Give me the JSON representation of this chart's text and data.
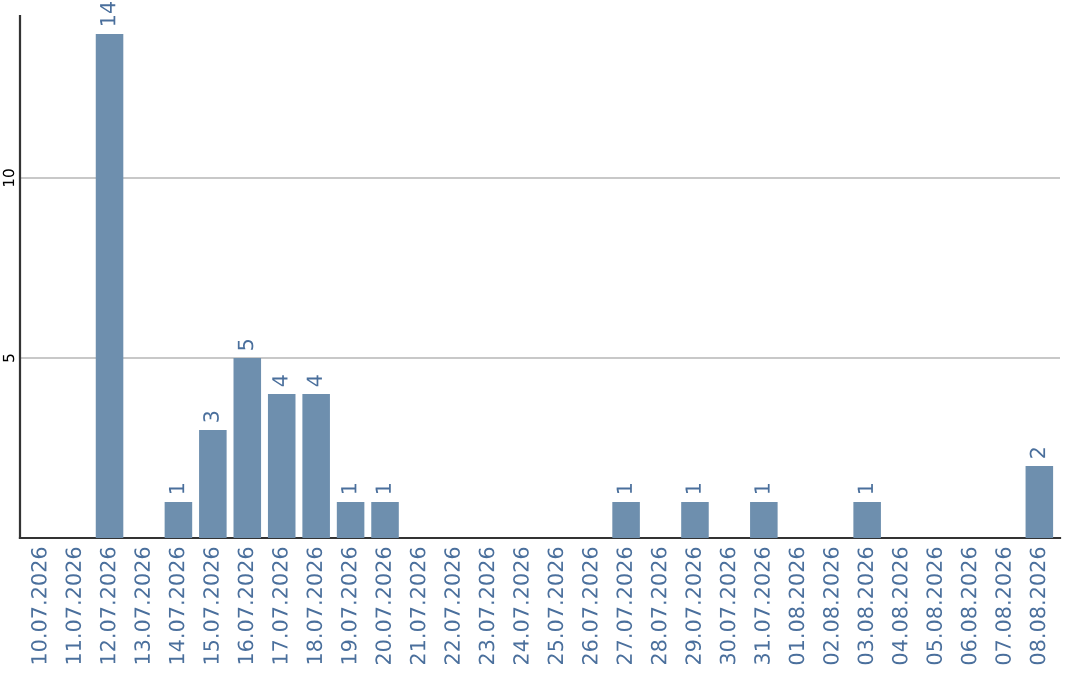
{
  "chart_data": {
    "type": "bar",
    "categories": [
      "10.07.2026",
      "11.07.2026",
      "12.07.2026",
      "13.07.2026",
      "14.07.2026",
      "15.07.2026",
      "16.07.2026",
      "17.07.2026",
      "18.07.2026",
      "19.07.2026",
      "20.07.2026",
      "21.07.2026",
      "22.07.2026",
      "23.07.2026",
      "24.07.2026",
      "25.07.2026",
      "26.07.2026",
      "27.07.2026",
      "28.07.2026",
      "29.07.2026",
      "30.07.2026",
      "31.07.2026",
      "01.08.2026",
      "02.08.2026",
      "03.08.2026",
      "04.08.2026",
      "05.08.2026",
      "06.08.2026",
      "07.08.2026",
      "08.08.2026"
    ],
    "values": [
      0,
      0,
      14,
      0,
      1,
      3,
      5,
      4,
      4,
      1,
      1,
      0,
      0,
      0,
      0,
      0,
      0,
      1,
      0,
      1,
      0,
      1,
      0,
      0,
      1,
      0,
      0,
      0,
      0,
      2
    ],
    "value_labels": [
      null,
      null,
      "14",
      null,
      "1",
      "3",
      "5",
      "4",
      "4",
      "1",
      "1",
      null,
      null,
      null,
      null,
      null,
      null,
      "1",
      null,
      "1",
      null,
      "1",
      null,
      null,
      "1",
      null,
      null,
      null,
      null,
      "2"
    ],
    "color": "#6e8fae",
    "ylim": [
      0,
      14.5
    ],
    "yticks": [
      5,
      10
    ],
    "grid": "y"
  }
}
